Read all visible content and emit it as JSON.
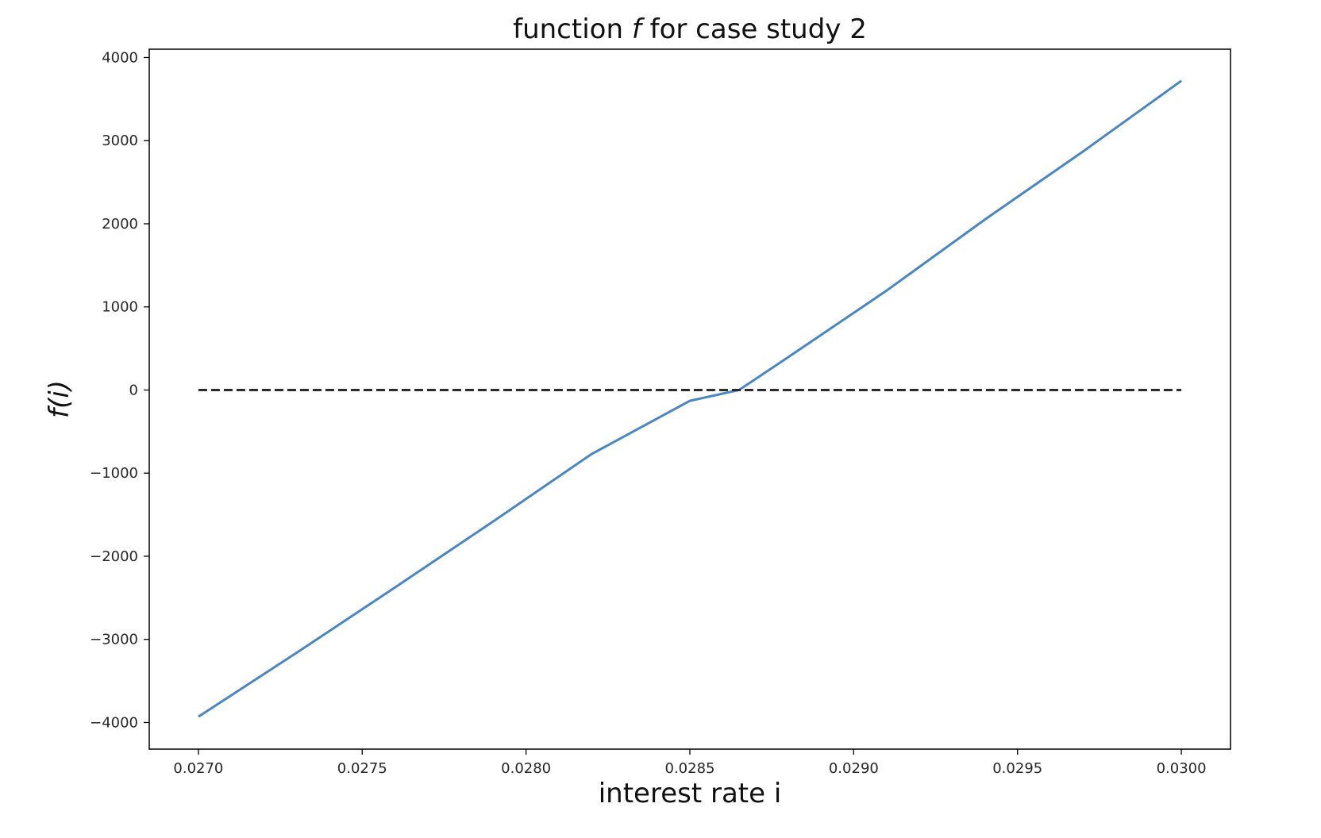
{
  "chart_data": {
    "type": "line",
    "title": {
      "before": "function ",
      "italic": "f",
      "after": " for case study 2"
    },
    "xlabel": "interest rate i",
    "ylabel": "f(i)",
    "xlim": [
      0.02685,
      0.03015
    ],
    "ylim": [
      -4320,
      4100
    ],
    "x_ticks": [
      0.027,
      0.0275,
      0.028,
      0.0285,
      0.029,
      0.0295,
      0.03
    ],
    "x_tick_labels": [
      "0.0270",
      "0.0275",
      "0.0280",
      "0.0285",
      "0.0290",
      "0.0295",
      "0.0300"
    ],
    "y_ticks": [
      4000,
      3000,
      2000,
      1000,
      0,
      -1000,
      -2000,
      -3000,
      -4000
    ],
    "y_tick_labels": [
      "4000",
      "3000",
      "2000",
      "1000",
      "0",
      "−1000",
      "−2000",
      "−3000",
      "−4000"
    ],
    "grid": false,
    "series": [
      {
        "style": "solid",
        "color": "#4a86c0",
        "x": [
          0.027,
          0.0273,
          0.0276,
          0.0279,
          0.0282,
          0.0285,
          0.02865,
          0.0288,
          0.0291,
          0.0294,
          0.0297,
          0.03
        ],
        "y": [
          -3930,
          -3160,
          -2375,
          -1580,
          -770,
          -130,
          0,
          395,
          1195,
          2050,
          2870,
          3720
        ]
      },
      {
        "style": "dashed",
        "color": "#2b2b2b",
        "x": [
          0.027,
          0.03
        ],
        "y": [
          0,
          0
        ]
      }
    ]
  }
}
